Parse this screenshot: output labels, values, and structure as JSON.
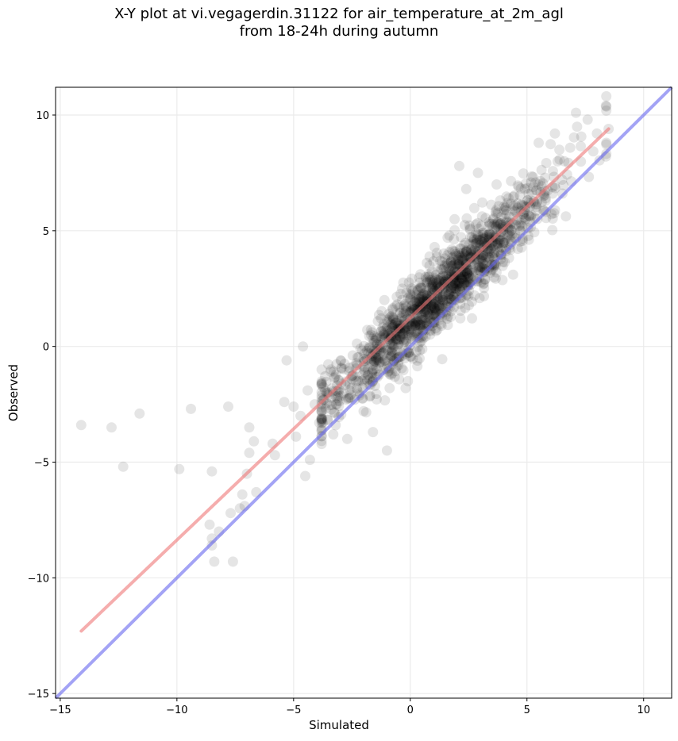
{
  "chart_data": {
    "type": "scatter",
    "title_line1": "X-Y plot at vi.vegagerdin.31122 for air_temperature_at_2m_agl",
    "title_line2": "from 18-24h during autumn",
    "xlabel": "Simulated",
    "ylabel": "Observed",
    "xlim": [
      -15.2,
      11.2
    ],
    "ylim": [
      -15.2,
      11.2
    ],
    "xticks": [
      -15,
      -10,
      -5,
      0,
      5,
      10
    ],
    "yticks": [
      -15,
      -10,
      -5,
      0,
      5,
      10
    ],
    "grid": true,
    "marker_color": "#000000",
    "identity_line": {
      "color": "#6666ee",
      "x": [
        -15.2,
        11.2
      ],
      "y": [
        -15.2,
        11.2
      ]
    },
    "fit_line": {
      "color": "#ee7777",
      "x": [
        -14.1,
        8.5
      ],
      "y": [
        -12.3,
        9.4
      ]
    },
    "outliers": [
      [
        -14.1,
        -3.4
      ],
      [
        -12.8,
        -3.5
      ],
      [
        -11.6,
        -2.9
      ],
      [
        -12.3,
        -5.2
      ],
      [
        -9.9,
        -5.3
      ],
      [
        -9.4,
        -2.7
      ],
      [
        -8.5,
        -5.4
      ],
      [
        -7.8,
        -2.6
      ],
      [
        -7.6,
        -9.3
      ],
      [
        -8.4,
        -9.3
      ],
      [
        -8.6,
        -7.7
      ],
      [
        -8.5,
        -8.3
      ],
      [
        -8.5,
        -8.6
      ],
      [
        -8.2,
        -8.0
      ],
      [
        -7.7,
        -7.2
      ],
      [
        -7.3,
        -7.0
      ],
      [
        -7.1,
        -6.9
      ],
      [
        -7.2,
        -6.4
      ],
      [
        -7.0,
        -5.5
      ],
      [
        -6.9,
        -3.5
      ],
      [
        -6.9,
        -4.6
      ],
      [
        -6.7,
        -4.1
      ],
      [
        -6.6,
        -6.3
      ],
      [
        -5.9,
        -4.2
      ],
      [
        -5.8,
        -4.7
      ],
      [
        -5.4,
        -2.4
      ],
      [
        -5.3,
        -0.6
      ],
      [
        -5.0,
        -2.6
      ],
      [
        -4.9,
        -3.9
      ],
      [
        -4.5,
        -5.6
      ],
      [
        -4.3,
        -4.9
      ],
      [
        -4.4,
        -1.9
      ],
      [
        -4.7,
        -3.0
      ],
      [
        -4.1,
        -2.5
      ],
      [
        -3.9,
        -3.3
      ],
      [
        -3.4,
        -1.0
      ],
      [
        -3.5,
        -2.1
      ],
      [
        -4.6,
        0.0
      ],
      [
        -1.0,
        -4.5
      ],
      [
        -0.2,
        -1.8
      ],
      [
        -0.1,
        -1.5
      ],
      [
        -1.6,
        -3.7
      ],
      [
        -2.7,
        -4.0
      ],
      [
        -3.3,
        -3.8
      ],
      [
        -2.0,
        -2.8
      ],
      [
        2.1,
        7.8
      ],
      [
        2.4,
        6.8
      ],
      [
        2.9,
        7.5
      ],
      [
        3.7,
        7.0
      ],
      [
        5.5,
        8.8
      ],
      [
        6.2,
        9.2
      ],
      [
        7.1,
        10.1
      ],
      [
        7.6,
        9.8
      ],
      [
        8.0,
        9.2
      ],
      [
        8.5,
        9.4
      ],
      [
        5.8,
        6.3
      ],
      [
        6.6,
        8.0
      ],
      [
        1.6,
        4.7
      ],
      [
        1.9,
        5.5
      ],
      [
        4.3,
        4.4
      ]
    ],
    "cloud": {
      "count": 1400,
      "x_mean": 1.2,
      "x_sd": 2.4,
      "x_min": -3.8,
      "x_max": 8.4,
      "slope": 0.97,
      "intercept": 1.05,
      "noise_sd": 0.8
    }
  }
}
